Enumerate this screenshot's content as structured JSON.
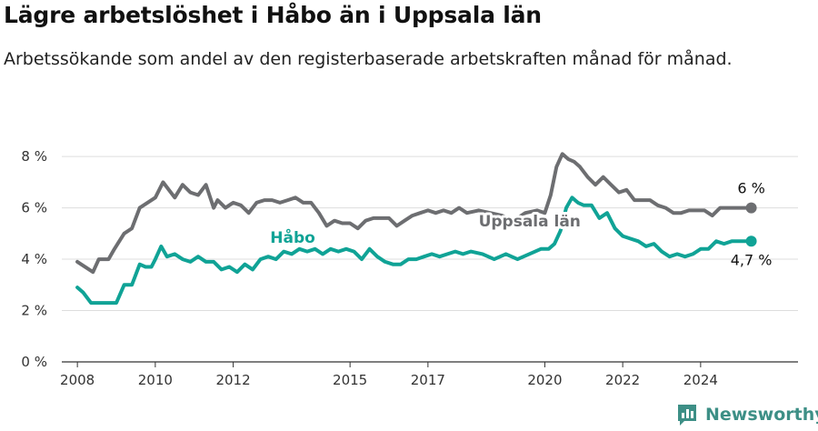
{
  "title": "Lägre arbetslöshet i Håbo än i Uppsala län",
  "subtitle": "Arbetssökande som andel av den registerbaserade arbetskraften månad för månad.",
  "brand": "Newsworthy",
  "colors": {
    "uppsala": "#6d6e71",
    "habo": "#10a396",
    "grid": "#dddddd",
    "axis": "#333333",
    "brand": "#3d8f86"
  },
  "chart_data": {
    "type": "line",
    "title": "Lägre arbetslöshet i Håbo än i Uppsala län",
    "ylim": [
      0,
      8.5
    ],
    "xlim": [
      2007.6,
      2026.5
    ],
    "yticks": [
      0,
      2,
      4,
      6,
      8
    ],
    "ytick_labels": [
      "0 %",
      "2 %",
      "4 %",
      "6 %",
      "8 %"
    ],
    "xticks": [
      2008,
      2010,
      2012,
      2015,
      2017,
      2020,
      2022,
      2024
    ],
    "xtick_labels": [
      "2008",
      "2010",
      "2012",
      "2015",
      "2017",
      "2020",
      "2022",
      "2024"
    ],
    "grid": "horizontal",
    "series": [
      {
        "name": "Uppsala län",
        "end_label": "6 %",
        "x": [
          2008.0,
          2008.4,
          2008.55,
          2008.8,
          2008.95,
          2009.2,
          2009.4,
          2009.6,
          2009.8,
          2010.0,
          2010.2,
          2010.5,
          2010.7,
          2010.9,
          2011.1,
          2011.3,
          2011.5,
          2011.6,
          2011.8,
          2012.0,
          2012.2,
          2012.4,
          2012.6,
          2012.8,
          2013.0,
          2013.2,
          2013.4,
          2013.6,
          2013.8,
          2014.0,
          2014.2,
          2014.4,
          2014.6,
          2014.8,
          2015.0,
          2015.2,
          2015.4,
          2015.6,
          2015.8,
          2016.0,
          2016.2,
          2016.4,
          2016.6,
          2016.8,
          2017.0,
          2017.2,
          2017.4,
          2017.6,
          2017.8,
          2018.0,
          2018.3,
          2018.6,
          2018.9,
          2019.2,
          2019.5,
          2019.8,
          2020.0,
          2020.15,
          2020.3,
          2020.45,
          2020.6,
          2020.75,
          2020.9,
          2021.1,
          2021.3,
          2021.5,
          2021.7,
          2021.9,
          2022.1,
          2022.3,
          2022.5,
          2022.7,
          2022.9,
          2023.1,
          2023.3,
          2023.5,
          2023.7,
          2023.9,
          2024.1,
          2024.3,
          2024.5,
          2024.7,
          2024.9,
          2025.1,
          2025.3
        ],
        "values": [
          3.9,
          3.5,
          4.0,
          4.0,
          4.4,
          5.0,
          5.2,
          6.0,
          6.2,
          6.4,
          7.0,
          6.4,
          6.9,
          6.6,
          6.5,
          6.9,
          6.0,
          6.3,
          6.0,
          6.2,
          6.1,
          5.8,
          6.2,
          6.3,
          6.3,
          6.2,
          6.3,
          6.4,
          6.2,
          6.2,
          5.8,
          5.3,
          5.5,
          5.4,
          5.4,
          5.2,
          5.5,
          5.6,
          5.6,
          5.6,
          5.3,
          5.5,
          5.7,
          5.8,
          5.9,
          5.8,
          5.9,
          5.8,
          6.0,
          5.8,
          5.9,
          5.8,
          5.7,
          5.5,
          5.8,
          5.9,
          5.8,
          6.5,
          7.6,
          8.1,
          7.9,
          7.8,
          7.6,
          7.2,
          6.9,
          7.2,
          6.9,
          6.6,
          6.7,
          6.3,
          6.3,
          6.3,
          6.1,
          6.0,
          5.8,
          5.8,
          5.9,
          5.9,
          5.9,
          5.7,
          6.0,
          6.0,
          6.0,
          6.0,
          6.0
        ]
      },
      {
        "name": "Håbo",
        "end_label": "4,7 %",
        "x": [
          2008.0,
          2008.15,
          2008.35,
          2008.6,
          2008.8,
          2009.0,
          2009.2,
          2009.4,
          2009.6,
          2009.75,
          2009.9,
          2010.0,
          2010.15,
          2010.3,
          2010.5,
          2010.7,
          2010.9,
          2011.1,
          2011.3,
          2011.5,
          2011.7,
          2011.9,
          2012.1,
          2012.3,
          2012.5,
          2012.7,
          2012.9,
          2013.1,
          2013.3,
          2013.5,
          2013.7,
          2013.9,
          2014.1,
          2014.3,
          2014.5,
          2014.7,
          2014.9,
          2015.1,
          2015.3,
          2015.5,
          2015.7,
          2015.9,
          2016.1,
          2016.3,
          2016.5,
          2016.7,
          2016.9,
          2017.1,
          2017.3,
          2017.5,
          2017.7,
          2017.9,
          2018.1,
          2018.4,
          2018.7,
          2019.0,
          2019.3,
          2019.6,
          2019.9,
          2020.1,
          2020.25,
          2020.4,
          2020.55,
          2020.7,
          2020.85,
          2021.0,
          2021.2,
          2021.4,
          2021.6,
          2021.8,
          2022.0,
          2022.2,
          2022.4,
          2022.6,
          2022.8,
          2023.0,
          2023.2,
          2023.4,
          2023.6,
          2023.8,
          2024.0,
          2024.2,
          2024.4,
          2024.6,
          2024.8,
          2025.0,
          2025.3
        ],
        "values": [
          2.9,
          2.7,
          2.3,
          2.3,
          2.3,
          2.3,
          3.0,
          3.0,
          3.8,
          3.7,
          3.7,
          4.0,
          4.5,
          4.1,
          4.2,
          4.0,
          3.9,
          4.1,
          3.9,
          3.9,
          3.6,
          3.7,
          3.5,
          3.8,
          3.6,
          4.0,
          4.1,
          4.0,
          4.3,
          4.2,
          4.4,
          4.3,
          4.4,
          4.2,
          4.4,
          4.3,
          4.4,
          4.3,
          4.0,
          4.4,
          4.1,
          3.9,
          3.8,
          3.8,
          4.0,
          4.0,
          4.1,
          4.2,
          4.1,
          4.2,
          4.3,
          4.2,
          4.3,
          4.2,
          4.0,
          4.2,
          4.0,
          4.2,
          4.4,
          4.4,
          4.6,
          5.1,
          6.0,
          6.4,
          6.2,
          6.1,
          6.1,
          5.6,
          5.8,
          5.2,
          4.9,
          4.8,
          4.7,
          4.5,
          4.6,
          4.3,
          4.1,
          4.2,
          4.1,
          4.2,
          4.4,
          4.4,
          4.7,
          4.6,
          4.7,
          4.7,
          4.7
        ]
      }
    ],
    "annotations": [
      {
        "text": "Uppsala län",
        "series": 0
      },
      {
        "text": "Håbo",
        "series": 1
      }
    ]
  }
}
